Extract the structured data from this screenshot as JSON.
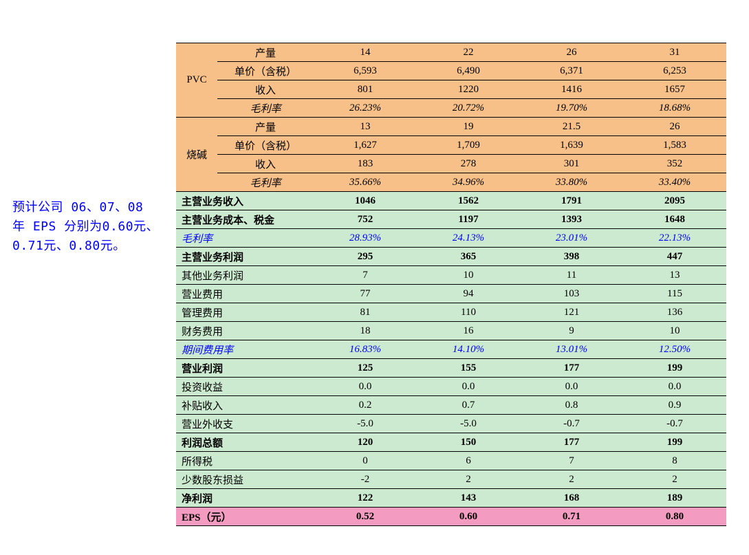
{
  "side_note": "预计公司 06、07、08 年 EPS 分别为0.60元、0.71元、0.80元。",
  "sections": {
    "pvc": {
      "name": "PVC",
      "rows": [
        {
          "label": "产量",
          "v": [
            "14",
            "22",
            "26",
            "31"
          ],
          "italic": false
        },
        {
          "label": "单价（含税）",
          "v": [
            "6,593",
            "6,490",
            "6,371",
            "6,253"
          ],
          "italic": false
        },
        {
          "label": "收入",
          "v": [
            "801",
            "1220",
            "1416",
            "1657"
          ],
          "italic": false
        },
        {
          "label": "毛利率",
          "v": [
            "26.23%",
            "20.72%",
            "19.70%",
            "18.68%"
          ],
          "italic": true
        }
      ]
    },
    "caustic": {
      "name": "烧碱",
      "rows": [
        {
          "label": "产量",
          "v": [
            "13",
            "19",
            "21.5",
            "26"
          ],
          "italic": false
        },
        {
          "label": "单价（含税）",
          "v": [
            "1,627",
            "1,709",
            "1,639",
            "1,583"
          ],
          "italic": false
        },
        {
          "label": "收入",
          "v": [
            "183",
            "278",
            "301",
            "352"
          ],
          "italic": false
        },
        {
          "label": "毛利率",
          "v": [
            "35.66%",
            "34.96%",
            "33.80%",
            "33.40%"
          ],
          "italic": true
        }
      ]
    }
  },
  "summary_rows": [
    {
      "label": "主营业务收入",
      "v": [
        "1046",
        "1562",
        "1791",
        "2095"
      ],
      "bold": true
    },
    {
      "label": "主营业务成本、税金",
      "v": [
        "752",
        "1197",
        "1393",
        "1648"
      ],
      "bold": true
    },
    {
      "label": "毛利率",
      "v": [
        "28.93%",
        "24.13%",
        "23.01%",
        "22.13%"
      ],
      "italic": true,
      "blue": true
    },
    {
      "label": "主营业务利润",
      "v": [
        "295",
        "365",
        "398",
        "447"
      ],
      "bold": true
    },
    {
      "label": "其他业务利润",
      "v": [
        "7",
        "10",
        "11",
        "13"
      ]
    },
    {
      "label": "营业费用",
      "v": [
        "77",
        "94",
        "103",
        "115"
      ]
    },
    {
      "label": "管理费用",
      "v": [
        "81",
        "110",
        "121",
        "136"
      ]
    },
    {
      "label": "财务费用",
      "v": [
        "18",
        "16",
        "9",
        "10"
      ]
    },
    {
      "label": "期间费用率",
      "v": [
        "16.83%",
        "14.10%",
        "13.01%",
        "12.50%"
      ],
      "italic": true,
      "blue": true
    },
    {
      "label": "营业利润",
      "v": [
        "125",
        "155",
        "177",
        "199"
      ],
      "bold": true
    },
    {
      "label": "投资收益",
      "v": [
        "0.0",
        "0.0",
        "0.0",
        "0.0"
      ]
    },
    {
      "label": "补贴收入",
      "v": [
        "0.2",
        "0.7",
        "0.8",
        "0.9"
      ]
    },
    {
      "label": "营业外收支",
      "v": [
        "-5.0",
        "-5.0",
        "-0.7",
        "-0.7"
      ]
    },
    {
      "label": "利润总额",
      "v": [
        "120",
        "150",
        "177",
        "199"
      ],
      "bold": true
    },
    {
      "label": "所得税",
      "v": [
        "0",
        "6",
        "7",
        "8"
      ]
    },
    {
      "label": "少数股东损益",
      "v": [
        "-2",
        "2",
        "2",
        "2"
      ]
    },
    {
      "label": "净利润",
      "v": [
        "122",
        "143",
        "168",
        "189"
      ],
      "bold": true
    }
  ],
  "eps_row": {
    "label": "EPS（元）",
    "v": [
      "0.52",
      "0.60",
      "0.71",
      "0.80"
    ]
  }
}
